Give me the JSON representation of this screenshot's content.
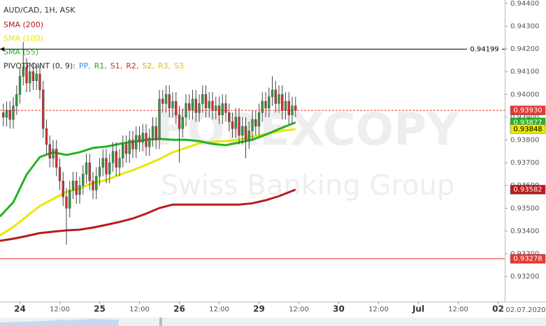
{
  "chart_data": {
    "type": "candlestick",
    "title": "AUD/CAD, 1H, ASK",
    "watermark": [
      "FOREXCOPY",
      "Swiss Banking Group"
    ],
    "date_label": "02.07.2020",
    "xlim": [
      -6,
      146
    ],
    "ylim": [
      0.9309,
      0.94415
    ],
    "xticks": [
      {
        "value": 0,
        "label": "24"
      },
      {
        "value": 12,
        "label": "12:00"
      },
      {
        "value": 24,
        "label": "25"
      },
      {
        "value": 36,
        "label": "12:00"
      },
      {
        "value": 48,
        "label": "26"
      },
      {
        "value": 60,
        "label": "12:00"
      },
      {
        "value": 72,
        "label": "29"
      },
      {
        "value": 84,
        "label": "12:00"
      },
      {
        "value": 96,
        "label": "30"
      },
      {
        "value": 108,
        "label": "12:00"
      },
      {
        "value": 120,
        "label": "Jul"
      },
      {
        "value": 132,
        "label": "12:00"
      },
      {
        "value": 144,
        "label": "02"
      }
    ],
    "yticks": [
      {
        "value": 0.932,
        "label": "0.93200"
      },
      {
        "value": 0.933,
        "label": "0.93300"
      },
      {
        "value": 0.934,
        "label": "0.93400"
      },
      {
        "value": 0.935,
        "label": "0.93500"
      },
      {
        "value": 0.936,
        "label": "0.93600"
      },
      {
        "value": 0.937,
        "label": "0.93700"
      },
      {
        "value": 0.938,
        "label": "0.93800"
      },
      {
        "value": 0.939,
        "label": "0.93900"
      },
      {
        "value": 0.94,
        "label": "0.94000"
      },
      {
        "value": 0.941,
        "label": "0.94100"
      },
      {
        "value": 0.942,
        "label": "0.94200"
      },
      {
        "value": 0.943,
        "label": "0.94300"
      },
      {
        "value": 0.944,
        "label": "0.94400"
      }
    ],
    "up_color": "#2e9e3e",
    "down_color": "#d32f2f",
    "x": [
      -5,
      -4,
      -3,
      -2,
      -1,
      0,
      1,
      2,
      3,
      4,
      5,
      6,
      7,
      8,
      9,
      10,
      11,
      12,
      13,
      14,
      15,
      16,
      17,
      18,
      19,
      20,
      21,
      22,
      23,
      24,
      25,
      26,
      27,
      28,
      29,
      30,
      31,
      32,
      33,
      34,
      35,
      36,
      37,
      38,
      39,
      40,
      41,
      42,
      43,
      44,
      45,
      46,
      47,
      48,
      49,
      50,
      51,
      52,
      53,
      54,
      55,
      56,
      57,
      58,
      59,
      60,
      61,
      62,
      63,
      64,
      65,
      66,
      67,
      68,
      69,
      70,
      71,
      72,
      73,
      74,
      75,
      76,
      77,
      78,
      79,
      80,
      81,
      82,
      83
    ],
    "candles": [
      [
        0.9392,
        0.9396,
        0.9386,
        0.939
      ],
      [
        0.939,
        0.9397,
        0.9386,
        0.9393
      ],
      [
        0.9393,
        0.9397,
        0.9385,
        0.9389
      ],
      [
        0.9389,
        0.9399,
        0.9385,
        0.9395
      ],
      [
        0.9395,
        0.9404,
        0.9391,
        0.94
      ],
      [
        0.94,
        0.9412,
        0.9396,
        0.9408
      ],
      [
        0.9408,
        0.9423,
        0.9404,
        0.9412
      ],
      [
        0.9412,
        0.9416,
        0.9401,
        0.9405
      ],
      [
        0.9405,
        0.9414,
        0.9401,
        0.941
      ],
      [
        0.941,
        0.9414,
        0.9402,
        0.9406
      ],
      [
        0.9406,
        0.9413,
        0.9402,
        0.9409
      ],
      [
        0.9409,
        0.9413,
        0.9398,
        0.9402
      ],
      [
        0.9402,
        0.9406,
        0.9381,
        0.9385
      ],
      [
        0.9385,
        0.9389,
        0.9374,
        0.9378
      ],
      [
        0.9378,
        0.9382,
        0.9368,
        0.9372
      ],
      [
        0.9372,
        0.938,
        0.9368,
        0.9376
      ],
      [
        0.9376,
        0.938,
        0.9364,
        0.9368
      ],
      [
        0.9368,
        0.9372,
        0.9358,
        0.9362
      ],
      [
        0.9362,
        0.9366,
        0.9351,
        0.9355
      ],
      [
        0.9355,
        0.9359,
        0.9334,
        0.935
      ],
      [
        0.935,
        0.9362,
        0.9346,
        0.9358
      ],
      [
        0.9358,
        0.9366,
        0.9354,
        0.9362
      ],
      [
        0.9362,
        0.9366,
        0.9352,
        0.9356
      ],
      [
        0.9356,
        0.9364,
        0.9352,
        0.936
      ],
      [
        0.936,
        0.9369,
        0.9356,
        0.9365
      ],
      [
        0.9365,
        0.9374,
        0.9361,
        0.937
      ],
      [
        0.937,
        0.9374,
        0.9358,
        0.9362
      ],
      [
        0.9362,
        0.9366,
        0.9354,
        0.9358
      ],
      [
        0.9358,
        0.9368,
        0.9354,
        0.9364
      ],
      [
        0.9364,
        0.9372,
        0.936,
        0.9368
      ],
      [
        0.9368,
        0.9376,
        0.9364,
        0.9372
      ],
      [
        0.9372,
        0.9376,
        0.9361,
        0.9365
      ],
      [
        0.9365,
        0.9374,
        0.9361,
        0.937
      ],
      [
        0.937,
        0.9379,
        0.9366,
        0.9375
      ],
      [
        0.9375,
        0.9379,
        0.9364,
        0.9368
      ],
      [
        0.9368,
        0.9376,
        0.9364,
        0.9372
      ],
      [
        0.9372,
        0.9382,
        0.9368,
        0.9378
      ],
      [
        0.9378,
        0.9382,
        0.937,
        0.9374
      ],
      [
        0.9374,
        0.9384,
        0.937,
        0.938
      ],
      [
        0.938,
        0.9384,
        0.9372,
        0.9376
      ],
      [
        0.9376,
        0.9386,
        0.9372,
        0.9382
      ],
      [
        0.9382,
        0.9386,
        0.9375,
        0.9379
      ],
      [
        0.9379,
        0.9387,
        0.9375,
        0.9383
      ],
      [
        0.9383,
        0.9387,
        0.9373,
        0.9377
      ],
      [
        0.9377,
        0.9385,
        0.9373,
        0.9381
      ],
      [
        0.9381,
        0.939,
        0.9377,
        0.9386
      ],
      [
        0.9386,
        0.939,
        0.9376,
        0.938
      ],
      [
        0.938,
        0.9402,
        0.9376,
        0.9398
      ],
      [
        0.9398,
        0.9402,
        0.9392,
        0.9396
      ],
      [
        0.9396,
        0.9404,
        0.9392,
        0.94
      ],
      [
        0.94,
        0.9404,
        0.939,
        0.9394
      ],
      [
        0.9394,
        0.9401,
        0.939,
        0.9397
      ],
      [
        0.9397,
        0.9401,
        0.9387,
        0.9391
      ],
      [
        0.9391,
        0.9395,
        0.937,
        0.9385
      ],
      [
        0.9385,
        0.9394,
        0.9381,
        0.939
      ],
      [
        0.939,
        0.94,
        0.9386,
        0.9396
      ],
      [
        0.9396,
        0.94,
        0.9389,
        0.9393
      ],
      [
        0.9393,
        0.9402,
        0.9389,
        0.9398
      ],
      [
        0.9398,
        0.9402,
        0.9388,
        0.9392
      ],
      [
        0.9392,
        0.94,
        0.9388,
        0.9396
      ],
      [
        0.9396,
        0.9404,
        0.9392,
        0.94
      ],
      [
        0.94,
        0.9404,
        0.939,
        0.9394
      ],
      [
        0.9394,
        0.9401,
        0.939,
        0.9397
      ],
      [
        0.9397,
        0.9401,
        0.9389,
        0.9393
      ],
      [
        0.9393,
        0.9399,
        0.9389,
        0.9395
      ],
      [
        0.9395,
        0.9399,
        0.9387,
        0.9391
      ],
      [
        0.9391,
        0.94,
        0.9387,
        0.9396
      ],
      [
        0.9396,
        0.94,
        0.9388,
        0.9392
      ],
      [
        0.9392,
        0.9396,
        0.9384,
        0.9388
      ],
      [
        0.9388,
        0.9392,
        0.9381,
        0.9385
      ],
      [
        0.9385,
        0.9394,
        0.9381,
        0.939
      ],
      [
        0.939,
        0.9394,
        0.9378,
        0.9382
      ],
      [
        0.9382,
        0.939,
        0.9378,
        0.9386
      ],
      [
        0.9386,
        0.939,
        0.9372,
        0.938
      ],
      [
        0.938,
        0.9388,
        0.9376,
        0.9384
      ],
      [
        0.9384,
        0.9393,
        0.938,
        0.9389
      ],
      [
        0.9389,
        0.9393,
        0.9382,
        0.9386
      ],
      [
        0.9386,
        0.9396,
        0.9382,
        0.9392
      ],
      [
        0.9392,
        0.9401,
        0.9388,
        0.9397
      ],
      [
        0.9397,
        0.9401,
        0.939,
        0.9394
      ],
      [
        0.9394,
        0.9403,
        0.939,
        0.9399
      ],
      [
        0.9399,
        0.9408,
        0.9395,
        0.9402
      ],
      [
        0.9402,
        0.9406,
        0.9392,
        0.9396
      ],
      [
        0.9396,
        0.9404,
        0.9392,
        0.94
      ],
      [
        0.94,
        0.9404,
        0.9389,
        0.9393
      ],
      [
        0.9393,
        0.9401,
        0.9389,
        0.9397
      ],
      [
        0.9397,
        0.9401,
        0.9387,
        0.9391
      ],
      [
        0.9391,
        0.9399,
        0.9387,
        0.9395
      ],
      [
        0.9395,
        0.9399,
        0.939,
        0.9393
      ]
    ],
    "series": [
      {
        "name": "SMA (200)",
        "color": "#b71c1c",
        "x": [
          -6,
          -2,
          2,
          6,
          10,
          14,
          18,
          22,
          26,
          30,
          34,
          38,
          42,
          46,
          50,
          54,
          58,
          62,
          66,
          70,
          74,
          78,
          83
        ],
        "values": [
          0.93357,
          0.93366,
          0.93378,
          0.93391,
          0.93397,
          0.93403,
          0.93406,
          0.93415,
          0.93427,
          0.9344,
          0.93455,
          0.93476,
          0.93501,
          0.93516,
          0.93516,
          0.93516,
          0.93516,
          0.93516,
          0.93516,
          0.93522,
          0.93535,
          0.93553,
          0.93582
        ]
      },
      {
        "name": "SMA (100)",
        "color": "#e8e800",
        "x": [
          -6,
          -2,
          2,
          6,
          10,
          14,
          18,
          22,
          26,
          30,
          34,
          38,
          42,
          46,
          50,
          54,
          58,
          62,
          66,
          70,
          74,
          78,
          83
        ],
        "values": [
          0.93381,
          0.93418,
          0.93464,
          0.9351,
          0.93541,
          0.93572,
          0.93587,
          0.93611,
          0.93624,
          0.93648,
          0.93667,
          0.93691,
          0.93716,
          0.93746,
          0.93765,
          0.93786,
          0.93792,
          0.93795,
          0.93801,
          0.93814,
          0.93826,
          0.93838,
          0.93848
        ]
      },
      {
        "name": "SMA (55)",
        "color": "#22b422",
        "x": [
          -6,
          -2,
          2,
          6,
          10,
          14,
          18,
          22,
          26,
          30,
          34,
          38,
          42,
          46,
          50,
          54,
          58,
          62,
          66,
          70,
          74,
          78,
          83
        ],
        "values": [
          0.93464,
          0.93526,
          0.93648,
          0.93725,
          0.93746,
          0.93734,
          0.93746,
          0.93765,
          0.93771,
          0.93783,
          0.93792,
          0.93801,
          0.93805,
          0.93801,
          0.93801,
          0.93795,
          0.93783,
          0.93777,
          0.93789,
          0.93801,
          0.93823,
          0.93848,
          0.93877
        ]
      }
    ],
    "pivot": {
      "label": "PIVOTPOINT (0, 9):",
      "items": [
        {
          "name": "PP,",
          "color": "#2196f3"
        },
        {
          "name": "R1,",
          "color": "#22a822"
        },
        {
          "name": "S1,",
          "color": "#d32f2f"
        },
        {
          "name": "R2,",
          "color": "#d32f2f"
        },
        {
          "name": "S2,",
          "color": "#f39c12"
        },
        {
          "name": "R3,",
          "color": "#e6c200"
        },
        {
          "name": "S3",
          "color": "#e6c200"
        }
      ]
    },
    "price_lines": [
      {
        "value": 0.94199,
        "label": "0.94199",
        "color": "#000000",
        "text_color": "#000000",
        "line_style": "solid",
        "label_box": "plot"
      },
      {
        "value": 0.9393,
        "label": "0.93930",
        "color": "#e53935",
        "text_color": "#ffffff",
        "line_style": "dashed",
        "label_box": "axis"
      },
      {
        "value": 0.93877,
        "label": "0.93877",
        "color": "#22b422",
        "text_color": "#ffffff",
        "line_style": "none",
        "label_box": "axis"
      },
      {
        "value": 0.93848,
        "label": "0.93848",
        "color": "#e8e800",
        "text_color": "#000000",
        "line_style": "none",
        "label_box": "axis"
      },
      {
        "value": 0.93582,
        "label": "0.93582",
        "color": "#b71c1c",
        "text_color": "#ffffff",
        "line_style": "none",
        "label_box": "axis"
      },
      {
        "value": 0.93278,
        "label": "0.93278",
        "color": "#e53935",
        "text_color": "#ffffff",
        "line_style": "solid",
        "label_box": "axis"
      }
    ]
  }
}
